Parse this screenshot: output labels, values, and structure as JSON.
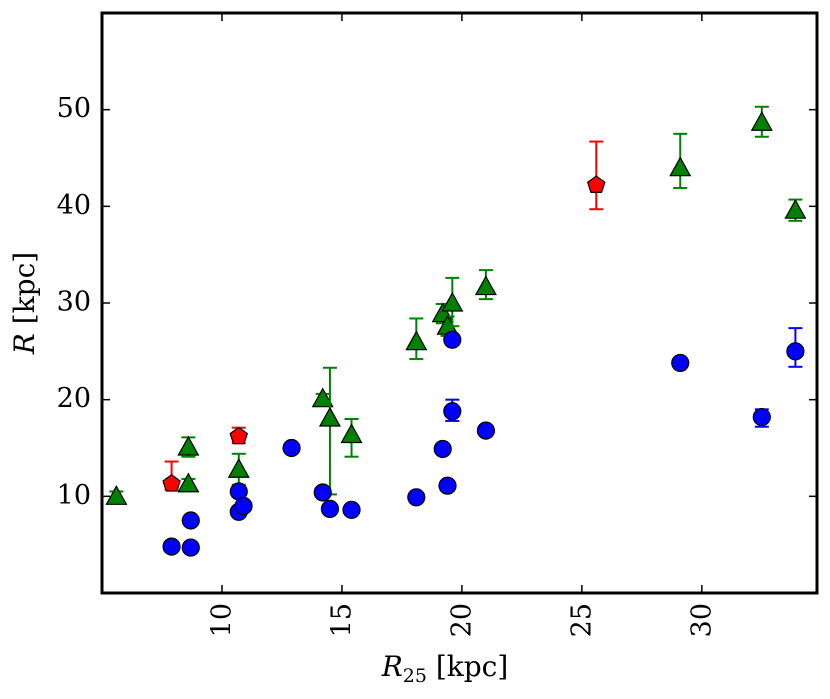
{
  "chart_data": {
    "type": "scatter",
    "title": "",
    "xlabel": {
      "symbol": "R",
      "subscript": "25",
      "unit": " [kpc]"
    },
    "ylabel": {
      "symbol": "R",
      "unit": " [kpc]"
    },
    "xlim": [
      5.0,
      34.8
    ],
    "ylim": [
      0,
      60
    ],
    "x_ticks": [
      10,
      15,
      20,
      25,
      30
    ],
    "y_ticks": [
      10,
      20,
      30,
      40,
      50
    ],
    "grid": false,
    "legend": null,
    "series": [
      {
        "name": "green-triangles",
        "marker": "triangle",
        "color": "#008000",
        "errbar_color": "#008000",
        "points": [
          {
            "x": 5.6,
            "y": 10.0,
            "err_lo": 0.5,
            "err_hi": 0.5
          },
          {
            "x": 8.6,
            "y": 15.1,
            "err_lo": 1.0,
            "err_hi": 1.0
          },
          {
            "x": 8.6,
            "y": 11.3,
            "err_lo": 0.5,
            "err_hi": 0.5
          },
          {
            "x": 10.7,
            "y": 12.8,
            "err_lo": 1.6,
            "err_hi": 1.6
          },
          {
            "x": 14.2,
            "y": 20.1,
            "err_lo": 0.5,
            "err_hi": 0.5
          },
          {
            "x": 14.5,
            "y": 18.1,
            "err_lo": 7.9,
            "err_hi": 5.2
          },
          {
            "x": 15.4,
            "y": 16.4,
            "err_lo": 2.3,
            "err_hi": 1.6
          },
          {
            "x": 18.1,
            "y": 26.0,
            "err_lo": 1.8,
            "err_hi": 2.4
          },
          {
            "x": 19.2,
            "y": 28.9,
            "err_lo": 1.0,
            "err_hi": 1.0
          },
          {
            "x": 19.4,
            "y": 27.6,
            "err_lo": 1.0,
            "err_hi": 1.0
          },
          {
            "x": 19.6,
            "y": 30.0,
            "err_lo": 2.4,
            "err_hi": 2.6
          },
          {
            "x": 21.0,
            "y": 31.7,
            "err_lo": 1.3,
            "err_hi": 1.7
          },
          {
            "x": 29.1,
            "y": 44.0,
            "err_lo": 2.1,
            "err_hi": 3.5
          },
          {
            "x": 32.5,
            "y": 48.7,
            "err_lo": 1.5,
            "err_hi": 1.6
          },
          {
            "x": 33.9,
            "y": 39.6,
            "err_lo": 1.1,
            "err_hi": 1.1
          }
        ]
      },
      {
        "name": "blue-circles",
        "marker": "circle",
        "color": "#0000ff",
        "errbar_color": "#0000ff",
        "points": [
          {
            "x": 7.9,
            "y": 4.8,
            "err_lo": 0.3,
            "err_hi": 0.3
          },
          {
            "x": 8.7,
            "y": 4.7,
            "err_lo": 0.3,
            "err_hi": 0.3
          },
          {
            "x": 8.7,
            "y": 7.5,
            "err_lo": 0.3,
            "err_hi": 0.3
          },
          {
            "x": 10.7,
            "y": 10.5,
            "err_lo": 0.5,
            "err_hi": 0.5
          },
          {
            "x": 10.7,
            "y": 8.4,
            "err_lo": 0.4,
            "err_hi": 0.4
          },
          {
            "x": 10.9,
            "y": 9.0,
            "err_lo": 0.4,
            "err_hi": 0.4
          },
          {
            "x": 12.9,
            "y": 15.0,
            "err_lo": 0.4,
            "err_hi": 0.4
          },
          {
            "x": 14.2,
            "y": 10.4,
            "err_lo": 0.4,
            "err_hi": 0.4
          },
          {
            "x": 14.5,
            "y": 8.7,
            "err_lo": 0.5,
            "err_hi": 0.5
          },
          {
            "x": 15.4,
            "y": 8.6,
            "err_lo": 0.4,
            "err_hi": 0.4
          },
          {
            "x": 18.1,
            "y": 9.9,
            "err_lo": 0.4,
            "err_hi": 0.4
          },
          {
            "x": 19.2,
            "y": 14.9,
            "err_lo": 0.4,
            "err_hi": 0.4
          },
          {
            "x": 19.4,
            "y": 11.1,
            "err_lo": 0.4,
            "err_hi": 0.4
          },
          {
            "x": 19.6,
            "y": 18.8,
            "err_lo": 1.0,
            "err_hi": 1.2
          },
          {
            "x": 19.6,
            "y": 26.2,
            "err_lo": 0.5,
            "err_hi": 0.5
          },
          {
            "x": 21.0,
            "y": 16.8,
            "err_lo": 0.5,
            "err_hi": 0.5
          },
          {
            "x": 29.1,
            "y": 23.8,
            "err_lo": 0.5,
            "err_hi": 0.5
          },
          {
            "x": 32.5,
            "y": 18.2,
            "err_lo": 1.0,
            "err_hi": 0.8
          },
          {
            "x": 33.9,
            "y": 25.0,
            "err_lo": 1.6,
            "err_hi": 2.4
          }
        ]
      },
      {
        "name": "red-pentagons",
        "marker": "pentagon",
        "color": "#ff0000",
        "errbar_color": "#ff0000",
        "points": [
          {
            "x": 7.9,
            "y": 11.3,
            "err_lo": 0.6,
            "err_hi": 2.3
          },
          {
            "x": 10.7,
            "y": 16.2,
            "err_lo": 0.7,
            "err_hi": 0.9
          },
          {
            "x": 25.6,
            "y": 42.2,
            "err_lo": 2.5,
            "err_hi": 4.5
          }
        ]
      }
    ]
  }
}
